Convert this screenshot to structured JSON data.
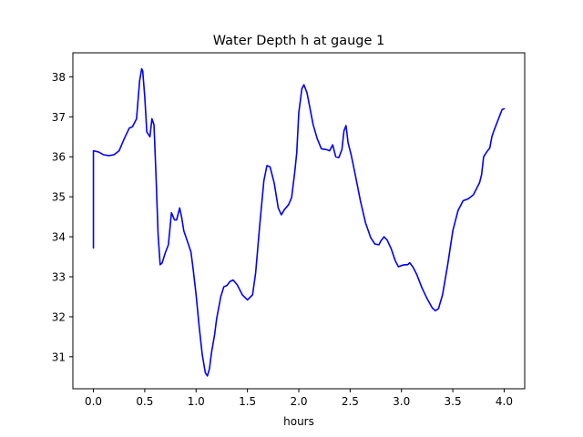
{
  "chart_data": {
    "type": "line",
    "title": "Water Depth h at gauge 1",
    "xlabel": "hours",
    "ylabel": "",
    "xlim": [
      -0.2,
      4.2
    ],
    "ylim": [
      30.2,
      38.6
    ],
    "xticks": [
      0.0,
      0.5,
      1.0,
      1.5,
      2.0,
      2.5,
      3.0,
      3.5,
      4.0
    ],
    "xtick_labels": [
      "0.0",
      "0.5",
      "1.0",
      "1.5",
      "2.0",
      "2.5",
      "3.0",
      "3.5",
      "4.0"
    ],
    "yticks": [
      31,
      32,
      33,
      34,
      35,
      36,
      37,
      38
    ],
    "ytick_labels": [
      "31",
      "32",
      "33",
      "34",
      "35",
      "36",
      "37",
      "38"
    ],
    "grid": false,
    "series": [
      {
        "color": "#0000ff",
        "x": [
          0.0,
          0.0,
          0.05,
          0.1,
          0.15,
          0.2,
          0.25,
          0.3,
          0.35,
          0.38,
          0.42,
          0.45,
          0.47,
          0.48,
          0.5,
          0.52,
          0.55,
          0.57,
          0.59,
          0.61,
          0.63,
          0.65,
          0.67,
          0.7,
          0.73,
          0.76,
          0.79,
          0.81,
          0.84,
          0.86,
          0.88,
          0.92,
          0.95,
          0.97,
          1.0,
          1.03,
          1.06,
          1.09,
          1.11,
          1.13,
          1.15,
          1.18,
          1.2,
          1.24,
          1.27,
          1.3,
          1.33,
          1.36,
          1.4,
          1.45,
          1.5,
          1.55,
          1.58,
          1.62,
          1.66,
          1.69,
          1.72,
          1.76,
          1.8,
          1.83,
          1.86,
          1.9,
          1.93,
          1.96,
          1.98,
          2.0,
          2.03,
          2.05,
          2.08,
          2.11,
          2.14,
          2.18,
          2.22,
          2.27,
          2.3,
          2.33,
          2.36,
          2.39,
          2.42,
          2.44,
          2.46,
          2.48,
          2.51,
          2.55,
          2.6,
          2.65,
          2.7,
          2.74,
          2.78,
          2.8,
          2.83,
          2.86,
          2.9,
          2.94,
          2.97,
          3.0,
          3.03,
          3.06,
          3.08,
          3.11,
          3.15,
          3.2,
          3.25,
          3.3,
          3.33,
          3.36,
          3.4,
          3.45,
          3.5,
          3.55,
          3.6,
          3.65,
          3.7,
          3.73,
          3.76,
          3.78,
          3.8,
          3.83,
          3.86,
          3.88,
          3.9,
          3.93,
          3.96,
          3.98,
          4.0
        ],
        "y": [
          33.72,
          36.15,
          36.12,
          36.05,
          36.03,
          36.05,
          36.15,
          36.45,
          36.72,
          36.75,
          36.95,
          37.9,
          38.2,
          38.15,
          37.5,
          36.62,
          36.5,
          36.95,
          36.8,
          35.5,
          34.05,
          33.3,
          33.35,
          33.6,
          33.8,
          34.6,
          34.42,
          34.42,
          34.72,
          34.48,
          34.15,
          33.85,
          33.62,
          33.22,
          32.55,
          31.75,
          31.05,
          30.6,
          30.52,
          30.7,
          31.1,
          31.55,
          31.95,
          32.5,
          32.75,
          32.78,
          32.88,
          32.92,
          32.8,
          32.55,
          32.42,
          32.55,
          33.1,
          34.3,
          35.4,
          35.78,
          35.75,
          35.35,
          34.72,
          34.55,
          34.68,
          34.8,
          34.98,
          35.6,
          36.1,
          37.1,
          37.7,
          37.8,
          37.6,
          37.2,
          36.8,
          36.45,
          36.2,
          36.18,
          36.15,
          36.3,
          36.0,
          35.98,
          36.18,
          36.65,
          36.78,
          36.35,
          36.05,
          35.55,
          34.9,
          34.35,
          33.98,
          33.82,
          33.8,
          33.9,
          34.0,
          33.92,
          33.7,
          33.4,
          33.25,
          33.28,
          33.3,
          33.3,
          33.35,
          33.25,
          33.05,
          32.72,
          32.45,
          32.22,
          32.15,
          32.2,
          32.55,
          33.3,
          34.15,
          34.65,
          34.9,
          34.95,
          35.05,
          35.2,
          35.35,
          35.55,
          36.0,
          36.12,
          36.22,
          36.5,
          36.65,
          36.85,
          37.05,
          37.18,
          37.2
        ]
      }
    ]
  }
}
